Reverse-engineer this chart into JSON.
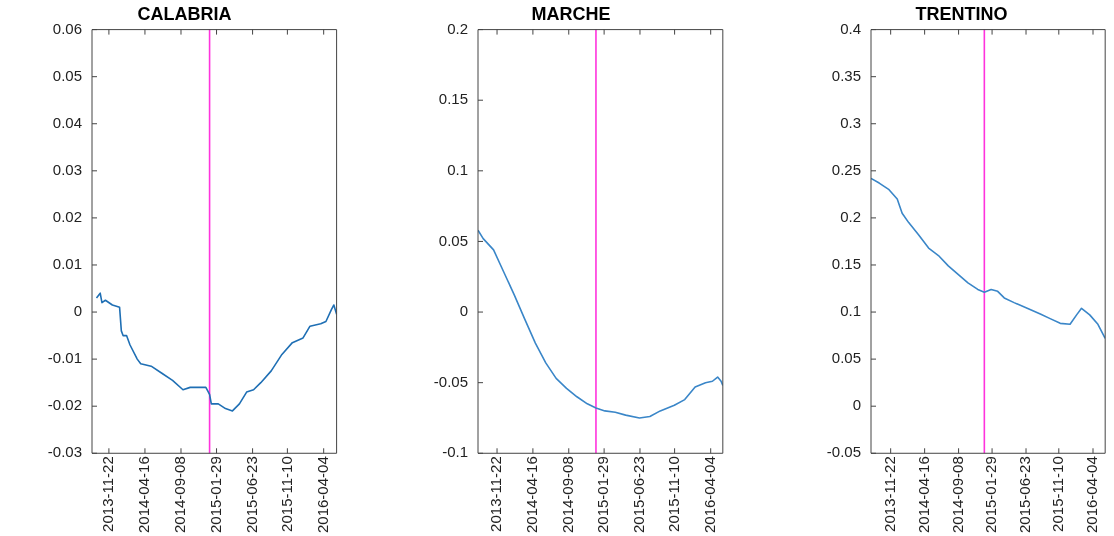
{
  "chart_data": [
    {
      "type": "line",
      "title": "CALABRIA",
      "xlim": [
        "2013-09-15",
        "2016-05-26"
      ],
      "xticks": [
        "2013-11-22",
        "2014-04-16",
        "2014-09-08",
        "2015-01-29",
        "2015-06-23",
        "2015-11-10",
        "2016-04-04"
      ],
      "ylim": [
        -0.03,
        0.06
      ],
      "yticks": [
        -0.03,
        -0.02,
        -0.01,
        0,
        0.01,
        0.02,
        0.03,
        0.04,
        0.05,
        0.06
      ],
      "grid": false,
      "marker": "none",
      "line_style": "solid",
      "ref_lines": [
        {
          "axis": "x",
          "value": "2015-01-01",
          "color": "#ff33dd"
        }
      ],
      "x": [
        "2013-10-03",
        "2013-10-18",
        "2013-10-25",
        "2013-11-08",
        "2013-12-06",
        "2014-01-04",
        "2014-01-11",
        "2014-01-18",
        "2014-02-01",
        "2014-02-15",
        "2014-03-16",
        "2014-03-30",
        "2014-05-11",
        "2014-06-23",
        "2014-08-05",
        "2014-09-16",
        "2014-10-15",
        "2014-11-12",
        "2014-12-17",
        "2015-01-01",
        "2015-01-08",
        "2015-02-05",
        "2015-03-06",
        "2015-04-03",
        "2015-05-01",
        "2015-05-30",
        "2015-06-27",
        "2015-07-26",
        "2015-09-06",
        "2015-10-19",
        "2015-11-30",
        "2016-01-12",
        "2016-02-09",
        "2016-03-23",
        "2016-04-13",
        "2016-05-05",
        "2016-05-15",
        "2016-05-26"
      ],
      "series": [
        {
          "color": "#1f6fb4",
          "values": [
            0.003,
            0.004,
            0.002,
            0.0025,
            0.0015,
            0.001,
            -0.004,
            -0.005,
            -0.005,
            -0.007,
            -0.01,
            -0.011,
            -0.0115,
            -0.013,
            -0.0145,
            -0.0165,
            -0.016,
            -0.016,
            -0.016,
            -0.0175,
            -0.0195,
            -0.0195,
            -0.0205,
            -0.021,
            -0.0195,
            -0.017,
            -0.0165,
            -0.015,
            -0.0125,
            -0.009,
            -0.0065,
            -0.0055,
            -0.003,
            -0.0025,
            -0.002,
            0.0005,
            0.0015,
            -0.0005
          ]
        }
      ]
    },
    {
      "type": "line",
      "title": "MARCHE",
      "xlim": [
        "2013-09-06",
        "2016-05-23"
      ],
      "xticks": [
        "2013-11-22",
        "2014-04-16",
        "2014-09-08",
        "2015-01-29",
        "2015-06-23",
        "2015-11-10",
        "2016-04-04"
      ],
      "ylim": [
        -0.1,
        0.2
      ],
      "yticks": [
        -0.1,
        -0.05,
        0,
        0.05,
        0.1,
        0.15,
        0.2
      ],
      "grid": false,
      "marker": "none",
      "line_style": "solid",
      "ref_lines": [
        {
          "axis": "x",
          "value": "2014-12-27",
          "color": "#ff33dd"
        }
      ],
      "x": [
        "2013-09-06",
        "2013-09-27",
        "2013-11-08",
        "2013-12-20",
        "2014-01-31",
        "2014-03-14",
        "2014-04-26",
        "2014-06-07",
        "2014-07-19",
        "2014-08-30",
        "2014-10-11",
        "2014-11-22",
        "2014-12-27",
        "2015-02-01",
        "2015-03-15",
        "2015-04-26",
        "2015-06-21",
        "2015-08-02",
        "2015-09-13",
        "2015-11-09",
        "2015-12-21",
        "2016-02-01",
        "2016-03-14",
        "2016-04-11",
        "2016-05-02",
        "2016-05-16",
        "2016-05-23"
      ],
      "series": [
        {
          "color": "#3a86c8",
          "values": [
            0.058,
            0.052,
            0.044,
            0.028,
            0.012,
            -0.005,
            -0.022,
            -0.036,
            -0.047,
            -0.054,
            -0.06,
            -0.065,
            -0.068,
            -0.07,
            -0.071,
            -0.073,
            -0.075,
            -0.074,
            -0.07,
            -0.066,
            -0.062,
            -0.053,
            -0.05,
            -0.049,
            -0.046,
            -0.049,
            -0.052
          ]
        }
      ]
    },
    {
      "type": "line",
      "title": "TRENTINO",
      "xlim": [
        "2013-08-30",
        "2016-05-26"
      ],
      "xticks": [
        "2013-11-22",
        "2014-04-16",
        "2014-09-08",
        "2015-01-29",
        "2015-06-23",
        "2015-11-10",
        "2016-04-04"
      ],
      "ylim": [
        -0.05,
        0.4
      ],
      "yticks": [
        -0.05,
        0,
        0.05,
        0.1,
        0.15,
        0.2,
        0.25,
        0.3,
        0.35,
        0.4
      ],
      "grid": false,
      "marker": "none",
      "line_style": "solid",
      "ref_lines": [
        {
          "axis": "x",
          "value": "2014-12-27",
          "color": "#ff33dd"
        }
      ],
      "x": [
        "2013-08-30",
        "2013-10-04",
        "2013-11-15",
        "2013-12-20",
        "2014-01-10",
        "2014-02-07",
        "2014-03-21",
        "2014-05-03",
        "2014-06-14",
        "2014-07-26",
        "2014-09-06",
        "2014-10-18",
        "2014-11-29",
        "2014-12-27",
        "2015-01-25",
        "2015-02-22",
        "2015-03-22",
        "2015-05-03",
        "2015-06-28",
        "2015-08-23",
        "2015-10-04",
        "2015-11-16",
        "2015-12-28",
        "2016-01-25",
        "2016-02-15",
        "2016-03-21",
        "2016-04-25",
        "2016-05-26"
      ],
      "series": [
        {
          "color": "#3a86c8",
          "values": [
            0.242,
            0.237,
            0.23,
            0.22,
            0.205,
            0.195,
            0.182,
            0.168,
            0.16,
            0.149,
            0.14,
            0.131,
            0.124,
            0.121,
            0.124,
            0.122,
            0.115,
            0.11,
            0.104,
            0.098,
            0.093,
            0.088,
            0.087,
            0.097,
            0.104,
            0.097,
            0.087,
            0.072
          ]
        }
      ]
    }
  ]
}
